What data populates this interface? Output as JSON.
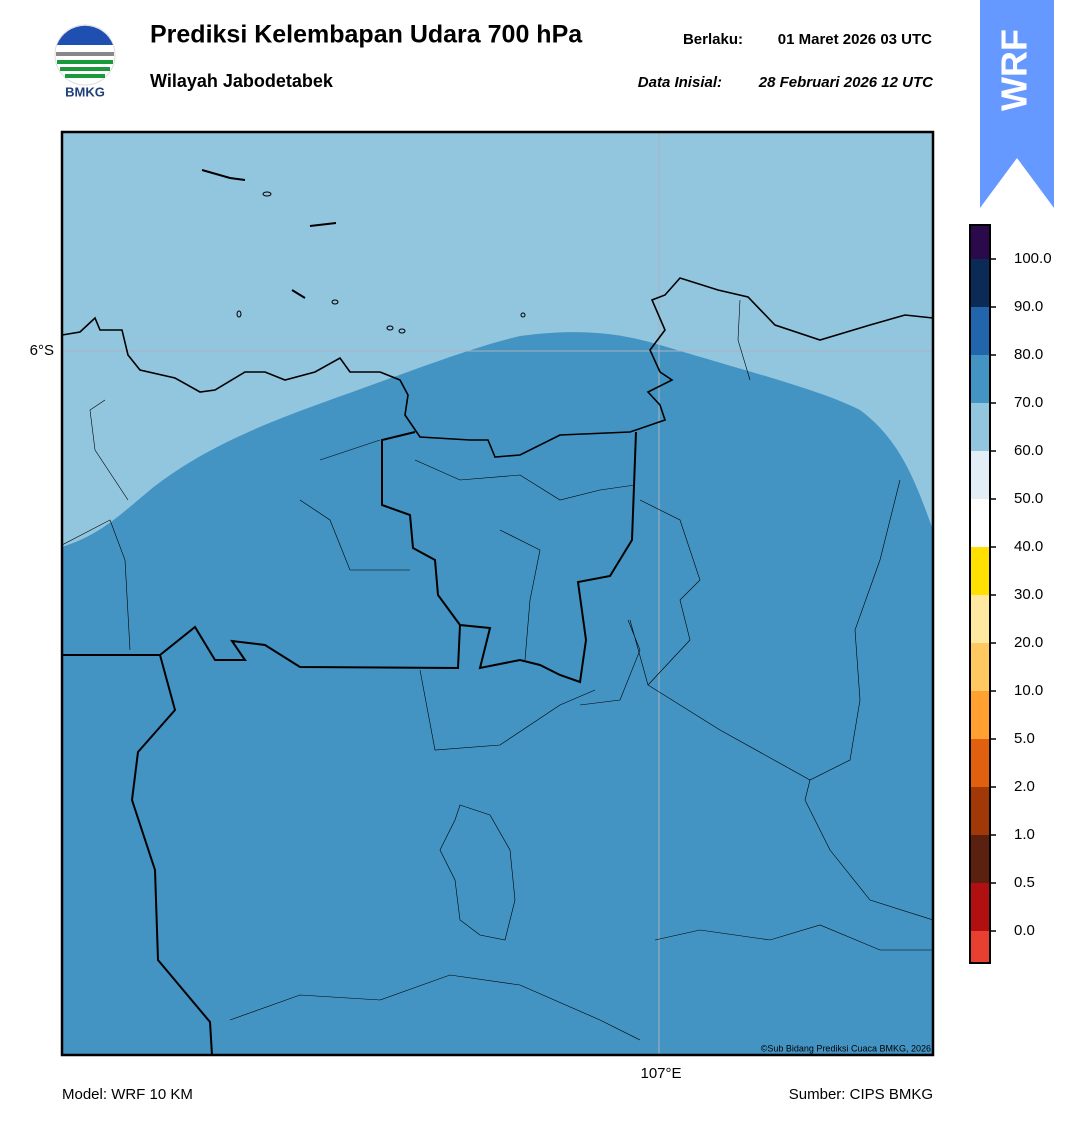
{
  "header": {
    "title": "Prediksi Kelembapan Udara 700 hPa",
    "subtitle": "Wilayah Jabodetabek",
    "valid_label": "Berlaku:",
    "valid_time": "01 Maret 2026 03 UTC",
    "init_label": "Data Inisial:",
    "init_time": "28 Februari 2026 12 UTC",
    "logo_text": "BMKG",
    "badge": "WRF"
  },
  "map": {
    "lat_label": "6°S",
    "lon_label": "107°E",
    "credit": "©Sub Bidang Prediksi Cuaca BMKG, 2026"
  },
  "colorbar": {
    "ticks": [
      {
        "value": 0,
        "label": "0.0"
      },
      {
        "value": 0.5,
        "label": "0.5"
      },
      {
        "value": 1,
        "label": "1.0"
      },
      {
        "value": 2,
        "label": "2.0"
      },
      {
        "value": 5,
        "label": "5.0"
      },
      {
        "value": 10,
        "label": "10.0"
      },
      {
        "value": 20,
        "label": "20.0"
      },
      {
        "value": 30,
        "label": "30.0"
      },
      {
        "value": 40,
        "label": "40.0"
      },
      {
        "value": 50,
        "label": "50.0"
      },
      {
        "value": 60,
        "label": "60.0"
      },
      {
        "value": 70,
        "label": "70.0"
      },
      {
        "value": 80,
        "label": "80.0"
      },
      {
        "value": 90,
        "label": "90.0"
      },
      {
        "value": 100,
        "label": "100.0"
      }
    ],
    "colors": [
      "#e84030",
      "#b01010",
      "#5a2010",
      "#a03808",
      "#e06010",
      "#ffa030",
      "#ffc860",
      "#ffe8a0",
      "#ffe000",
      "#ffffff",
      "#e3edf6",
      "#92c5de",
      "#4393c3",
      "#2166ac",
      "#0b2a55",
      "#2a0a4a"
    ]
  },
  "footer": {
    "model": "Model: WRF 10 KM",
    "source": "Sumber: CIPS BMKG"
  }
}
